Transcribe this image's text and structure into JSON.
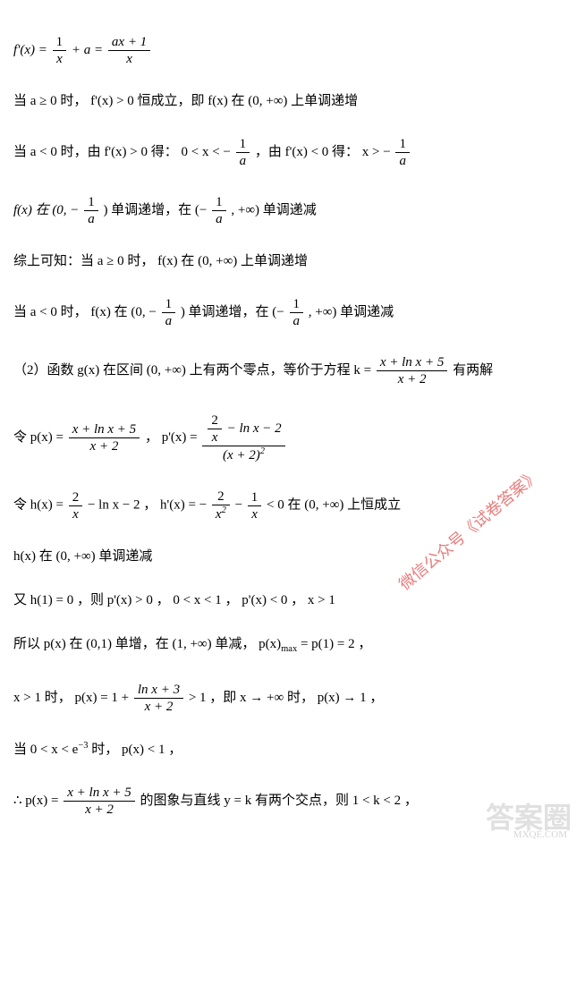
{
  "lines": {
    "l1_fprime": "f'(x) = ",
    "l1_frac1_num": "1",
    "l1_frac1_den": "x",
    "l1_mid": " + a = ",
    "l1_frac2_num": "ax + 1",
    "l1_frac2_den": "x",
    "l2": "当 a ≥ 0 时，  f'(x) > 0 恒成立，即 f(x) 在 (0, +∞) 上单调递增",
    "l3_a": "当 a < 0 时，由 f'(x) > 0 得： 0 < x < −",
    "l3_frac1_num": "1",
    "l3_frac1_den": "a",
    "l3_b": "，由 f'(x) < 0 得： x > −",
    "l3_frac2_num": "1",
    "l3_frac2_den": "a",
    "l4_a": "f(x) 在 (0, −",
    "l4_frac1_num": "1",
    "l4_frac1_den": "a",
    "l4_b": ") 单调递增，在 (−",
    "l4_frac2_num": "1",
    "l4_frac2_den": "a",
    "l4_c": ", +∞) 单调递减",
    "l5": "综上可知：当 a ≥ 0 时，  f(x) 在 (0, +∞) 上单调递增",
    "l6_a": "当 a < 0 时，  f(x) 在 (0, −",
    "l6_frac1_num": "1",
    "l6_frac1_den": "a",
    "l6_b": ") 单调递增，在 (−",
    "l6_frac2_num": "1",
    "l6_frac2_den": "a",
    "l6_c": ", +∞) 单调递减",
    "l7_a": "（2）函数 g(x) 在区间 (0, +∞) 上有两个零点，等价于方程 k = ",
    "l7_frac_num": "x + ln x + 5",
    "l7_frac_den": "x + 2",
    "l7_b": " 有两解",
    "l8_a": "令 p(x) = ",
    "l8_frac1_num": "x + ln x + 5",
    "l8_frac1_den": "x + 2",
    "l8_b": " ，  p'(x) = ",
    "l8_frac2_inner_num": "2",
    "l8_frac2_inner_den": "x",
    "l8_frac2_num_tail": " − ln x − 2",
    "l8_frac2_den_base": "(x + 2)",
    "l8_frac2_den_exp": "2",
    "l9_a": "令 h(x) = ",
    "l9_frac1_num": "2",
    "l9_frac1_den": "x",
    "l9_b": " − ln x − 2 ，  h'(x) = −",
    "l9_frac2_num": "2",
    "l9_frac2_den_base": "x",
    "l9_frac2_den_exp": "2",
    "l9_c": " − ",
    "l9_frac3_num": "1",
    "l9_frac3_den": "x",
    "l9_d": " < 0 在 (0, +∞) 上恒成立",
    "l10": "h(x) 在 (0, +∞) 单调递减",
    "l11": "又 h(1) = 0 ，则 p'(x) > 0 ， 0 < x < 1 ，  p'(x) < 0 ，  x > 1",
    "l12_a": "所以 p(x) 在 (0,1) 单增，在 (1, +∞) 单减， p(x)",
    "l12_sub": "max",
    "l12_b": " = p(1) = 2 ，",
    "l13_a": "x > 1 时，  p(x) = 1 + ",
    "l13_frac_num": "ln x + 3",
    "l13_frac_den": "x + 2",
    "l13_b": " > 1 ，即 x → +∞ 时，  p(x) → 1 ，",
    "l14_a": "当 0 < x < e",
    "l14_exp": "−3",
    "l14_b": " 时，  p(x) < 1 ，",
    "l15_a": "∴ p(x) = ",
    "l15_frac_num": "x + ln x + 5",
    "l15_frac_den": "x + 2",
    "l15_b": " 的图象与直线 y = k 有两个交点，则 1 < k < 2 ，"
  },
  "watermarks": {
    "wm1": "微信公众号《试卷答案》",
    "wm2": "答案圈",
    "wm3": "MXQE.COM"
  },
  "style": {
    "body_bg": "#ffffff",
    "text_color": "#000000",
    "wm1_color": "#d44",
    "wm2_color": "#cccccc",
    "base_fontsize": 15,
    "line_spacing": 28
  }
}
